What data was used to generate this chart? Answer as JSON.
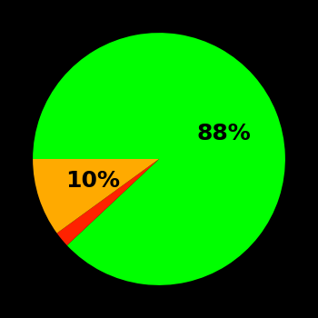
{
  "slices": [
    88,
    2,
    10
  ],
  "colors": [
    "#00ff00",
    "#ff2200",
    "#ffaa00"
  ],
  "labels": [
    "88%",
    "",
    "10%"
  ],
  "background_color": "#000000",
  "label_fontsize": 18,
  "label_color": "#000000",
  "startangle": 180,
  "label_radii": [
    0.55,
    0.0,
    0.55
  ]
}
